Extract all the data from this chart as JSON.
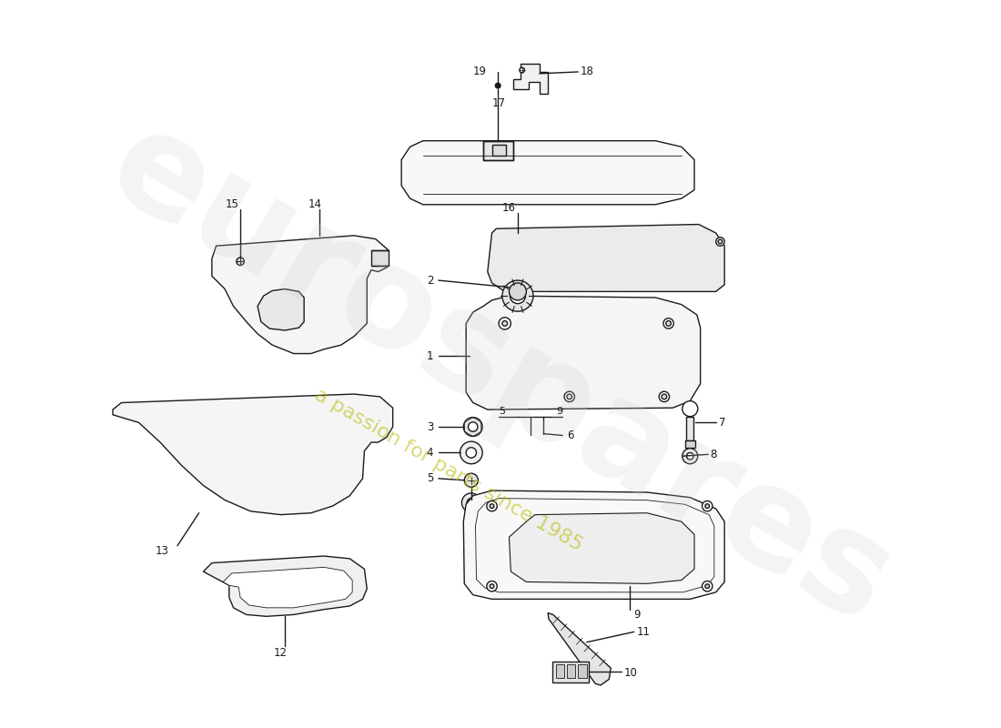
{
  "bg": "#ffffff",
  "lc": "#1a1a1a",
  "wm_text": "eurospares",
  "wm_sub": "a passion for parts since 1985",
  "figw": 11.0,
  "figh": 8.0,
  "dpi": 100
}
